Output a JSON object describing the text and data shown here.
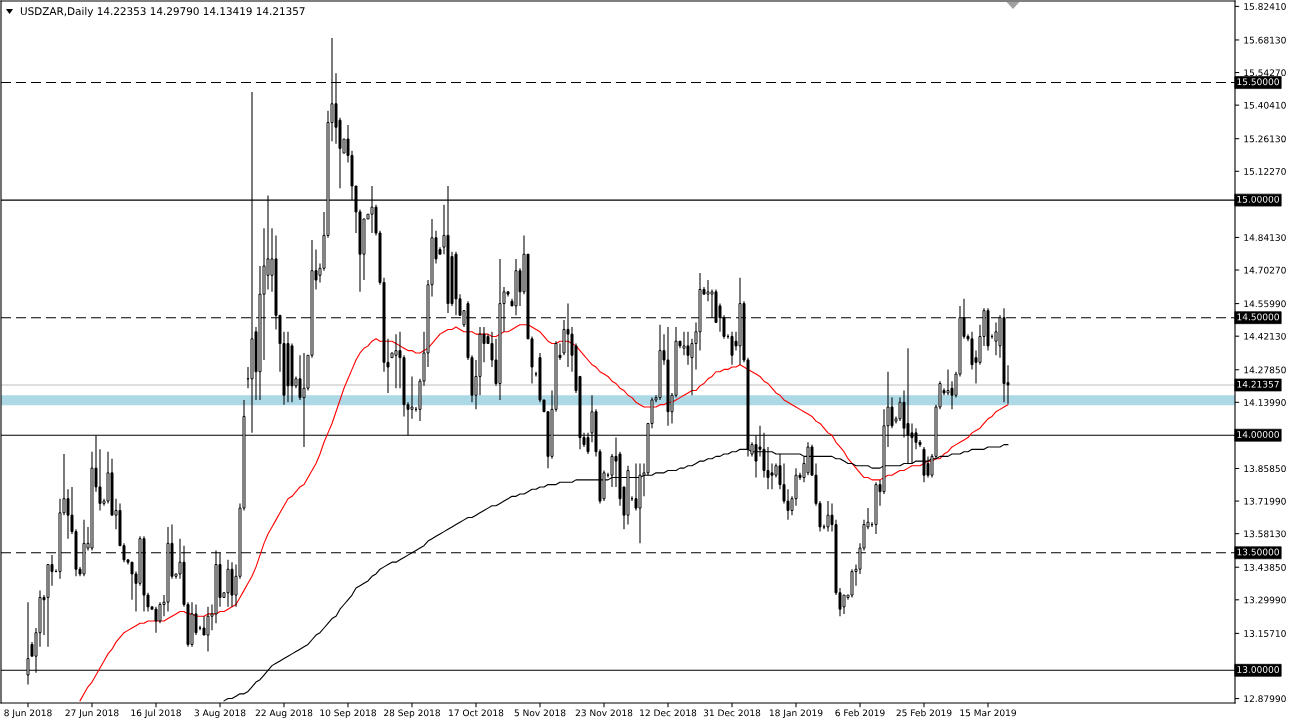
{
  "chart_data": {
    "type": "candlestick",
    "title": "USDZAR,Daily 14.22353 14.29790 14.13419 14.21357",
    "color": "#000000",
    "categories": [
      "8 Jun 2018",
      null,
      null,
      null,
      null,
      null,
      null,
      null,
      null,
      null,
      null,
      null,
      null,
      null,
      null,
      null,
      "27 Jun 2018",
      null,
      null,
      null,
      null,
      null,
      null,
      null,
      null,
      null,
      null,
      null,
      null,
      null,
      null,
      null,
      "16 Jul 2018",
      null,
      null,
      null,
      null,
      null,
      null,
      null,
      null,
      null,
      null,
      null,
      null,
      null,
      null,
      null,
      "3 Aug 2018",
      null,
      null,
      null,
      null,
      null,
      null,
      null,
      null,
      null,
      null,
      null,
      null,
      null,
      null,
      null,
      "22 Aug 2018",
      null,
      null,
      null,
      null,
      null,
      null,
      null,
      null,
      null,
      null,
      null,
      null,
      null,
      null,
      null,
      "10 Sep 2018",
      null,
      null,
      null,
      null,
      null,
      null,
      null,
      null,
      null,
      null,
      null,
      null,
      null,
      null,
      null,
      "28 Sep 2018",
      null,
      null,
      null,
      null,
      null,
      null,
      null,
      null,
      null,
      null,
      null,
      null,
      null,
      null,
      null,
      "17 Oct 2018",
      null,
      null,
      null,
      null,
      null,
      null,
      null,
      null,
      null,
      null,
      null,
      null,
      null,
      null,
      null,
      "5 Nov 2018",
      null,
      null,
      null,
      null,
      null,
      null,
      null,
      null,
      null,
      null,
      null,
      null,
      null,
      null,
      null,
      "23 Nov 2018",
      null,
      null,
      null,
      null,
      null,
      null,
      null,
      null,
      null,
      null,
      null,
      null,
      null,
      null,
      null,
      "12 Dec 2018",
      null,
      null,
      null,
      null,
      null,
      null,
      null,
      null,
      null,
      null,
      null,
      null,
      null,
      null,
      null,
      "31 Dec 2018",
      null,
      null,
      null,
      null,
      null,
      null,
      null,
      null,
      null,
      null,
      null,
      null,
      null,
      null,
      null,
      "18 Jan 2019",
      null,
      null,
      null,
      null,
      null,
      null,
      null,
      null,
      null,
      null,
      null,
      null,
      null,
      null,
      null,
      "6 Feb 2019",
      null,
      null,
      null,
      null,
      null,
      null,
      null,
      null,
      null,
      null,
      null,
      null,
      null,
      null,
      null,
      "25 Feb 2019",
      null,
      null,
      null,
      null,
      null,
      null,
      null,
      null,
      null,
      null,
      null,
      null,
      null,
      null,
      null,
      "15 Mar 2019",
      null,
      null,
      null,
      null,
      null
    ],
    "ohlc": [
      [
        12.98,
        13.29,
        12.94,
        13.05
      ],
      [
        13.11,
        13.12,
        13.06,
        13.06
      ],
      [
        13.06,
        13.18,
        12.99,
        13.16
      ],
      [
        13.16,
        13.34,
        13.1,
        13.31
      ],
      [
        13.31,
        13.32,
        13.15,
        13.3
      ],
      [
        13.31,
        13.45,
        13.1,
        13.45
      ],
      [
        13.45,
        13.49,
        13.36,
        13.42
      ],
      [
        13.42,
        13.43,
        13.42,
        13.42
      ],
      [
        13.42,
        13.73,
        13.39,
        13.67
      ],
      [
        13.67,
        13.92,
        13.66,
        13.73
      ],
      [
        13.73,
        13.77,
        13.56,
        13.66
      ],
      [
        13.66,
        13.78,
        13.58,
        13.59
      ],
      [
        13.59,
        13.6,
        13.4,
        13.43
      ],
      [
        13.43,
        13.44,
        13.4,
        13.41
      ],
      [
        13.41,
        13.64,
        13.4,
        13.54
      ],
      [
        13.52,
        13.61,
        13.51,
        13.54
      ],
      [
        13.52,
        13.93,
        13.51,
        13.86
      ],
      [
        13.86,
        14.0,
        13.76,
        13.78
      ],
      [
        13.78,
        13.94,
        13.68,
        13.71
      ],
      [
        13.71,
        13.73,
        13.7,
        13.72
      ],
      [
        13.72,
        13.93,
        13.71,
        13.84
      ],
      [
        13.84,
        13.9,
        13.66,
        13.66
      ],
      [
        13.66,
        13.73,
        13.6,
        13.68
      ],
      [
        13.68,
        13.71,
        13.53,
        13.53
      ],
      [
        13.53,
        13.54,
        13.46,
        13.47
      ],
      [
        13.47,
        13.47,
        13.45,
        13.46
      ],
      [
        13.46,
        13.46,
        13.3,
        13.41
      ],
      [
        13.41,
        13.42,
        13.25,
        13.37
      ],
      [
        13.37,
        13.57,
        13.36,
        13.56
      ],
      [
        13.56,
        13.57,
        13.25,
        13.32
      ],
      [
        13.32,
        13.33,
        13.25,
        13.27
      ],
      [
        13.27,
        13.27,
        13.26,
        13.26
      ],
      [
        13.26,
        13.27,
        13.16,
        13.21
      ],
      [
        13.21,
        13.29,
        13.2,
        13.28
      ],
      [
        13.28,
        13.32,
        13.23,
        13.29
      ],
      [
        13.29,
        13.61,
        13.25,
        13.54
      ],
      [
        13.54,
        13.62,
        13.39,
        13.4
      ],
      [
        13.4,
        13.41,
        13.39,
        13.41
      ],
      [
        13.41,
        13.56,
        13.39,
        13.46
      ],
      [
        13.46,
        13.53,
        13.27,
        13.28
      ],
      [
        13.28,
        13.29,
        13.1,
        13.11
      ],
      [
        13.11,
        13.29,
        13.1,
        13.24
      ],
      [
        13.24,
        13.28,
        13.15,
        13.16
      ],
      [
        13.18,
        13.19,
        13.17,
        13.18
      ],
      [
        13.18,
        13.23,
        13.15,
        13.15
      ],
      [
        13.15,
        13.27,
        13.08,
        13.23
      ],
      [
        13.23,
        13.28,
        13.17,
        13.24
      ],
      [
        13.24,
        13.51,
        13.2,
        13.45
      ],
      [
        13.45,
        13.5,
        13.27,
        13.31
      ],
      [
        13.31,
        13.33,
        13.31,
        13.33
      ],
      [
        13.33,
        13.47,
        13.27,
        13.43
      ],
      [
        13.43,
        13.46,
        13.27,
        13.32
      ],
      [
        13.32,
        13.45,
        13.27,
        13.4
      ],
      [
        13.4,
        13.71,
        13.39,
        13.69
      ],
      [
        13.69,
        14.15,
        13.68,
        14.08
      ],
      [
        14.24,
        14.29,
        14.2,
        14.24
      ],
      [
        14.24,
        15.46,
        14.01,
        14.41
      ],
      [
        14.44,
        14.46,
        14.15,
        14.27
      ],
      [
        14.27,
        14.72,
        14.15,
        14.6
      ],
      [
        14.6,
        14.88,
        14.32,
        14.72
      ],
      [
        14.68,
        15.02,
        14.62,
        14.75
      ],
      [
        14.68,
        14.88,
        14.61,
        14.75
      ],
      [
        14.75,
        14.85,
        14.45,
        14.51
      ],
      [
        14.51,
        14.51,
        14.27,
        14.39
      ],
      [
        14.39,
        14.44,
        14.13,
        14.17
      ],
      [
        14.39,
        14.44,
        14.14,
        14.21
      ],
      [
        14.38,
        14.39,
        14.14,
        14.21
      ],
      [
        14.21,
        14.25,
        14.2,
        14.24
      ],
      [
        14.24,
        14.34,
        14.15,
        14.16
      ],
      [
        14.16,
        14.35,
        13.95,
        14.2
      ],
      [
        14.2,
        14.34,
        14.19,
        14.34
      ],
      [
        14.34,
        14.83,
        14.33,
        14.7
      ],
      [
        14.7,
        14.79,
        14.62,
        14.66
      ],
      [
        14.68,
        14.73,
        14.65,
        14.71
      ],
      [
        14.71,
        14.95,
        14.7,
        14.85
      ],
      [
        14.85,
        15.38,
        14.84,
        15.33
      ],
      [
        15.33,
        15.69,
        15.25,
        15.41
      ],
      [
        15.41,
        15.54,
        15.24,
        15.31
      ],
      [
        15.34,
        15.35,
        15.05,
        15.22
      ],
      [
        15.2,
        15.26,
        15.2,
        15.26
      ],
      [
        15.26,
        15.32,
        15.16,
        15.19
      ],
      [
        15.19,
        15.21,
        15.0,
        15.06
      ],
      [
        15.06,
        15.06,
        14.86,
        14.95
      ],
      [
        14.95,
        14.96,
        14.61,
        14.77
      ],
      [
        14.77,
        14.92,
        14.66,
        14.92
      ],
      [
        14.92,
        14.94,
        14.92,
        14.94
      ],
      [
        14.94,
        15.06,
        14.86,
        14.97
      ],
      [
        14.97,
        14.98,
        14.85,
        14.86
      ],
      [
        14.86,
        14.87,
        14.64,
        14.65
      ],
      [
        14.65,
        14.67,
        14.27,
        14.31
      ],
      [
        14.31,
        14.41,
        14.18,
        14.29
      ],
      [
        14.33,
        14.35,
        14.33,
        14.35
      ],
      [
        14.34,
        14.43,
        14.2,
        14.36
      ],
      [
        14.36,
        14.44,
        14.2,
        14.33
      ],
      [
        14.33,
        14.34,
        14.08,
        14.13
      ],
      [
        14.13,
        14.14,
        14.0,
        14.11
      ],
      [
        14.11,
        14.25,
        14.07,
        14.12
      ],
      [
        14.11,
        14.12,
        14.1,
        14.11
      ],
      [
        14.11,
        14.24,
        14.06,
        14.23
      ],
      [
        14.23,
        14.44,
        14.21,
        14.35
      ],
      [
        14.35,
        14.66,
        14.29,
        14.64
      ],
      [
        14.64,
        14.92,
        14.59,
        14.84
      ],
      [
        14.84,
        14.87,
        14.73,
        14.75
      ],
      [
        14.79,
        14.8,
        14.77,
        14.77
      ],
      [
        14.8,
        14.98,
        14.77,
        14.85
      ],
      [
        14.85,
        15.06,
        14.52,
        14.56
      ],
      [
        14.76,
        14.78,
        14.55,
        14.56
      ],
      [
        14.77,
        14.78,
        14.51,
        14.58
      ],
      [
        14.58,
        14.6,
        14.51,
        14.51
      ],
      [
        14.47,
        14.53,
        14.46,
        14.53
      ],
      [
        14.56,
        14.57,
        14.32,
        14.33
      ],
      [
        14.33,
        14.34,
        14.14,
        14.17
      ],
      [
        14.17,
        14.32,
        14.11,
        14.25
      ],
      [
        14.25,
        14.46,
        14.17,
        14.43
      ],
      [
        14.43,
        14.46,
        14.31,
        14.39
      ],
      [
        14.42,
        14.43,
        14.39,
        14.39
      ],
      [
        14.39,
        14.44,
        14.29,
        14.32
      ],
      [
        14.32,
        14.41,
        14.21,
        14.22
      ],
      [
        14.22,
        14.75,
        14.15,
        14.56
      ],
      [
        14.56,
        14.63,
        14.44,
        14.61
      ],
      [
        14.61,
        14.61,
        14.59,
        14.6
      ],
      [
        14.57,
        14.58,
        14.55,
        14.55
      ],
      [
        14.55,
        14.75,
        14.51,
        14.7
      ],
      [
        14.7,
        14.71,
        14.55,
        14.61
      ],
      [
        14.61,
        14.85,
        14.6,
        14.77
      ],
      [
        14.77,
        14.77,
        14.41,
        14.41
      ],
      [
        14.41,
        14.42,
        14.22,
        14.29
      ],
      [
        14.26,
        14.27,
        14.25,
        14.26
      ],
      [
        14.33,
        14.35,
        14.14,
        14.15
      ],
      [
        14.15,
        14.15,
        14.1,
        14.1
      ],
      [
        14.1,
        14.1,
        13.86,
        13.91
      ],
      [
        13.91,
        14.19,
        13.9,
        14.11
      ],
      [
        14.11,
        14.4,
        14.1,
        14.39
      ],
      [
        14.34,
        14.39,
        14.32,
        14.33
      ],
      [
        14.35,
        14.49,
        14.34,
        14.45
      ],
      [
        14.45,
        14.56,
        14.29,
        14.43
      ],
      [
        14.43,
        14.46,
        14.27,
        14.34
      ],
      [
        14.38,
        14.39,
        14.18,
        14.19
      ],
      [
        14.25,
        14.25,
        13.94,
        13.99
      ],
      [
        13.99,
        14.01,
        13.95,
        13.96
      ],
      [
        13.99,
        14.01,
        13.92,
        13.93
      ],
      [
        14.01,
        14.17,
        13.97,
        14.1
      ],
      [
        14.1,
        14.11,
        13.91,
        13.93
      ],
      [
        13.93,
        13.94,
        13.71,
        13.72
      ],
      [
        13.73,
        13.85,
        13.72,
        13.84
      ],
      [
        13.83,
        13.84,
        13.82,
        13.83
      ],
      [
        13.83,
        13.92,
        13.78,
        13.91
      ],
      [
        13.91,
        13.99,
        13.78,
        13.89
      ],
      [
        13.92,
        13.93,
        13.7,
        13.73
      ],
      [
        13.78,
        13.78,
        13.6,
        13.66
      ],
      [
        13.66,
        13.87,
        13.62,
        13.85
      ],
      [
        13.73,
        13.74,
        13.72,
        13.73
      ],
      [
        13.73,
        13.88,
        13.68,
        13.69
      ],
      [
        13.69,
        13.88,
        13.54,
        13.83
      ],
      [
        13.83,
        13.88,
        13.74,
        13.84
      ],
      [
        13.84,
        14.05,
        13.83,
        14.05
      ],
      [
        14.05,
        14.16,
        14.03,
        14.15
      ],
      [
        14.15,
        14.17,
        14.14,
        14.16
      ],
      [
        14.16,
        14.47,
        14.15,
        14.36
      ],
      [
        14.36,
        14.43,
        14.3,
        14.32
      ],
      [
        14.32,
        14.46,
        14.04,
        14.1
      ],
      [
        14.1,
        14.18,
        14.05,
        14.17
      ],
      [
        14.17,
        14.46,
        14.16,
        14.4
      ],
      [
        14.4,
        14.4,
        14.37,
        14.38
      ],
      [
        14.37,
        14.44,
        14.34,
        14.38
      ],
      [
        14.38,
        14.44,
        14.3,
        14.34
      ],
      [
        14.33,
        14.41,
        14.17,
        14.39
      ],
      [
        14.39,
        14.48,
        14.28,
        14.44
      ],
      [
        14.44,
        14.69,
        14.36,
        14.62
      ],
      [
        14.62,
        14.63,
        14.6,
        14.6
      ],
      [
        14.6,
        14.66,
        14.57,
        14.61
      ],
      [
        14.6,
        14.62,
        14.5,
        14.61
      ],
      [
        14.61,
        14.62,
        14.48,
        14.48
      ],
      [
        14.55,
        14.56,
        14.44,
        14.5
      ],
      [
        14.5,
        14.51,
        14.41,
        14.42
      ],
      [
        14.42,
        14.43,
        14.41,
        14.42
      ],
      [
        14.42,
        14.44,
        14.3,
        14.34
      ],
      [
        14.4,
        14.44,
        14.36,
        14.38
      ],
      [
        14.38,
        14.67,
        14.3,
        14.56
      ],
      [
        14.56,
        14.57,
        14.31,
        14.32
      ],
      [
        14.32,
        14.33,
        13.91,
        13.94
      ],
      [
        13.92,
        13.97,
        13.91,
        13.96
      ],
      [
        13.96,
        14.0,
        13.82,
        13.89
      ],
      [
        13.95,
        14.04,
        13.91,
        13.94
      ],
      [
        13.94,
        14.01,
        13.82,
        13.85
      ],
      [
        13.85,
        13.95,
        13.77,
        13.82
      ],
      [
        13.84,
        13.88,
        13.77,
        13.83
      ],
      [
        13.83,
        13.88,
        13.82,
        13.87
      ],
      [
        13.87,
        13.92,
        13.77,
        13.79
      ],
      [
        13.79,
        13.88,
        13.71,
        13.72
      ],
      [
        13.72,
        13.77,
        13.64,
        13.68
      ],
      [
        13.68,
        13.74,
        13.66,
        13.73
      ],
      [
        13.73,
        13.86,
        13.7,
        13.83
      ],
      [
        13.83,
        13.84,
        13.81,
        13.82
      ],
      [
        13.82,
        13.91,
        13.8,
        13.88
      ],
      [
        13.84,
        13.97,
        13.83,
        13.95
      ],
      [
        13.95,
        13.96,
        13.83,
        13.83
      ],
      [
        13.83,
        13.88,
        13.7,
        13.71
      ],
      [
        13.71,
        13.72,
        13.59,
        13.61
      ],
      [
        13.61,
        13.62,
        13.6,
        13.61
      ],
      [
        13.61,
        13.72,
        13.59,
        13.66
      ],
      [
        13.66,
        13.71,
        13.59,
        13.62
      ],
      [
        13.62,
        13.64,
        13.32,
        13.33
      ],
      [
        13.33,
        13.35,
        13.23,
        13.26
      ],
      [
        13.27,
        13.32,
        13.24,
        13.32
      ],
      [
        13.31,
        13.32,
        13.3,
        13.32
      ],
      [
        13.32,
        13.43,
        13.31,
        13.42
      ],
      [
        13.42,
        13.45,
        13.36,
        13.43
      ],
      [
        13.43,
        13.54,
        13.41,
        13.52
      ],
      [
        13.52,
        13.64,
        13.51,
        13.62
      ],
      [
        13.61,
        13.69,
        13.6,
        13.63
      ],
      [
        13.62,
        13.63,
        13.61,
        13.62
      ],
      [
        13.62,
        13.8,
        13.58,
        13.79
      ],
      [
        13.79,
        13.81,
        13.7,
        13.76
      ],
      [
        13.76,
        14.11,
        13.75,
        14.04
      ],
      [
        14.04,
        14.27,
        13.95,
        14.12
      ],
      [
        14.12,
        14.16,
        14.03,
        14.04
      ],
      [
        14.06,
        14.08,
        14.05,
        14.07
      ],
      [
        14.07,
        14.16,
        14.06,
        14.14
      ],
      [
        14.14,
        14.19,
        13.99,
        14.03
      ],
      [
        14.05,
        14.37,
        13.88,
        14.0
      ],
      [
        14.01,
        14.05,
        13.88,
        13.99
      ],
      [
        14.01,
        14.03,
        13.94,
        13.97
      ],
      [
        13.97,
        13.98,
        13.95,
        13.96
      ],
      [
        13.94,
        13.95,
        13.8,
        13.83
      ],
      [
        13.88,
        13.91,
        13.82,
        13.83
      ],
      [
        13.83,
        13.92,
        13.82,
        13.91
      ],
      [
        13.91,
        14.13,
        13.9,
        14.12
      ],
      [
        14.12,
        14.23,
        14.11,
        14.22
      ],
      [
        14.19,
        14.2,
        14.17,
        14.18
      ],
      [
        14.18,
        14.28,
        14.17,
        14.19
      ],
      [
        14.2,
        14.23,
        14.11,
        14.17
      ],
      [
        14.17,
        14.27,
        14.16,
        14.26
      ],
      [
        14.26,
        14.55,
        14.25,
        14.5
      ],
      [
        14.5,
        14.58,
        14.41,
        14.42
      ],
      [
        14.42,
        14.43,
        14.4,
        14.41
      ],
      [
        14.41,
        14.44,
        14.28,
        14.3
      ],
      [
        14.33,
        14.36,
        14.22,
        14.31
      ],
      [
        14.31,
        14.47,
        14.3,
        14.42
      ],
      [
        14.42,
        14.54,
        14.38,
        14.53
      ],
      [
        14.53,
        14.54,
        14.36,
        14.38
      ],
      [
        14.42,
        14.43,
        14.41,
        14.42
      ],
      [
        14.4,
        14.48,
        14.34,
        14.44
      ],
      [
        14.38,
        14.51,
        14.33,
        14.5
      ],
      [
        14.5,
        14.54,
        14.14,
        14.22
      ],
      [
        14.22353,
        14.2979,
        14.13419,
        14.21357
      ]
    ],
    "series": [
      {
        "type": "line",
        "color": "#ff0000",
        "values": [
          null,
          null,
          null,
          null,
          null,
          null,
          null,
          null,
          null,
          null,
          null,
          null,
          null,
          12.87,
          12.9,
          12.93,
          12.95,
          12.98,
          13.01,
          13.04,
          13.07,
          13.09,
          13.12,
          13.14,
          13.16,
          13.17,
          13.18,
          13.19,
          13.2,
          13.2,
          13.21,
          13.21,
          13.21,
          13.21,
          13.21,
          13.22,
          13.23,
          13.24,
          13.25,
          13.25,
          13.24,
          13.24,
          13.23,
          13.23,
          13.23,
          13.24,
          13.24,
          13.24,
          13.25,
          13.25,
          13.26,
          13.27,
          13.28,
          13.31,
          13.34,
          13.37,
          13.4,
          13.44,
          13.49,
          13.54,
          13.58,
          13.61,
          13.64,
          13.67,
          13.7,
          13.73,
          13.74,
          13.76,
          13.78,
          13.79,
          13.82,
          13.85,
          13.88,
          13.92,
          13.97,
          14.01,
          14.05,
          14.1,
          14.15,
          14.2,
          14.24,
          14.28,
          14.32,
          14.35,
          14.37,
          14.38,
          14.4,
          14.41,
          14.4,
          14.4,
          14.4,
          14.4,
          14.39,
          14.38,
          14.37,
          14.36,
          14.36,
          14.35,
          14.35,
          14.36,
          14.37,
          14.39,
          14.41,
          14.43,
          14.44,
          14.45,
          14.45,
          14.46,
          14.45,
          14.44,
          14.44,
          14.44,
          14.43,
          14.43,
          14.43,
          14.43,
          14.42,
          14.42,
          14.43,
          14.44,
          14.44,
          14.45,
          14.46,
          14.47,
          14.47,
          14.47,
          14.46,
          14.45,
          14.44,
          14.42,
          14.4,
          14.39,
          14.39,
          14.4,
          14.4,
          14.4,
          14.39,
          14.38,
          14.36,
          14.34,
          14.32,
          14.3,
          14.29,
          14.27,
          14.26,
          14.25,
          14.23,
          14.22,
          14.2,
          14.19,
          14.17,
          14.16,
          14.14,
          14.13,
          14.12,
          14.12,
          14.12,
          14.12,
          14.13,
          14.13,
          14.14,
          14.14,
          14.15,
          14.16,
          14.17,
          14.18,
          14.19,
          14.19,
          14.21,
          14.22,
          14.24,
          14.25,
          14.27,
          14.27,
          14.28,
          14.28,
          14.29,
          14.29,
          14.3,
          14.29,
          14.28,
          14.27,
          14.26,
          14.25,
          14.23,
          14.22,
          14.2,
          14.18,
          14.17,
          14.15,
          14.14,
          14.13,
          14.12,
          14.11,
          14.1,
          14.09,
          14.08,
          14.06,
          14.05,
          14.03,
          14.01,
          14.0,
          13.97,
          13.95,
          13.93,
          13.9,
          13.88,
          13.86,
          13.84,
          13.82,
          13.82,
          13.81,
          13.81,
          13.81,
          13.82,
          13.83,
          13.83,
          13.84,
          13.85,
          13.85,
          13.86,
          13.87,
          13.87,
          13.87,
          13.88,
          13.89,
          13.89,
          13.9,
          13.9,
          13.92,
          13.93,
          13.95,
          13.96,
          13.97,
          13.98,
          13.99,
          14.01,
          14.02,
          14.03,
          14.05,
          14.07,
          14.08,
          14.1,
          14.11,
          14.12,
          14.13
        ]
      },
      {
        "type": "line",
        "color": "#000000",
        "values": [
          null,
          null,
          null,
          null,
          null,
          null,
          null,
          null,
          null,
          null,
          null,
          null,
          null,
          null,
          null,
          null,
          null,
          null,
          null,
          null,
          null,
          null,
          null,
          null,
          null,
          null,
          null,
          null,
          null,
          null,
          null,
          null,
          null,
          null,
          null,
          null,
          null,
          null,
          null,
          null,
          null,
          null,
          null,
          null,
          null,
          null,
          null,
          null,
          null,
          12.87,
          12.88,
          12.88,
          12.89,
          12.9,
          12.9,
          12.91,
          12.93,
          12.95,
          12.96,
          12.98,
          13.0,
          13.02,
          13.03,
          13.04,
          13.05,
          13.06,
          13.07,
          13.08,
          13.09,
          13.1,
          13.11,
          13.13,
          13.15,
          13.16,
          13.18,
          13.2,
          13.22,
          13.23,
          13.26,
          13.28,
          13.3,
          13.32,
          13.35,
          13.36,
          13.37,
          13.38,
          13.4,
          13.41,
          13.43,
          13.44,
          13.45,
          13.46,
          13.46,
          13.47,
          13.48,
          13.49,
          13.5,
          13.51,
          13.52,
          13.53,
          13.55,
          13.56,
          13.57,
          13.58,
          13.59,
          13.6,
          13.61,
          13.62,
          13.63,
          13.64,
          13.65,
          13.65,
          13.66,
          13.67,
          13.68,
          13.69,
          13.7,
          13.7,
          13.71,
          13.72,
          13.73,
          13.74,
          13.74,
          13.75,
          13.75,
          13.76,
          13.77,
          13.77,
          13.78,
          13.78,
          13.79,
          13.79,
          13.79,
          13.8,
          13.8,
          13.8,
          13.8,
          13.81,
          13.81,
          13.81,
          13.81,
          13.81,
          13.81,
          13.81,
          13.81,
          13.81,
          13.82,
          13.82,
          13.82,
          13.82,
          13.82,
          13.82,
          13.82,
          13.82,
          13.83,
          13.83,
          13.83,
          13.84,
          13.84,
          13.84,
          13.85,
          13.85,
          13.85,
          13.86,
          13.86,
          13.87,
          13.87,
          13.88,
          13.89,
          13.89,
          13.9,
          13.9,
          13.91,
          13.91,
          13.92,
          13.92,
          13.93,
          13.93,
          13.94,
          13.94,
          13.94,
          13.93,
          13.93,
          13.93,
          13.93,
          13.93,
          13.93,
          13.92,
          13.92,
          13.92,
          13.92,
          13.92,
          13.92,
          13.92,
          13.91,
          13.91,
          13.91,
          13.91,
          13.91,
          13.91,
          13.91,
          13.91,
          13.9,
          13.9,
          13.89,
          13.88,
          13.88,
          13.87,
          13.87,
          13.87,
          13.87,
          13.86,
          13.86,
          13.86,
          13.87,
          13.87,
          13.87,
          13.87,
          13.87,
          13.88,
          13.88,
          13.88,
          13.89,
          13.89,
          13.89,
          13.89,
          13.9,
          13.9,
          13.91,
          13.91,
          13.91,
          13.92,
          13.92,
          13.92,
          13.93,
          13.93,
          13.94,
          13.94,
          13.94,
          13.94,
          13.95,
          13.95,
          13.95,
          13.95,
          13.96,
          13.96
        ]
      }
    ],
    "ylim": [
      12.861,
      15.847
    ],
    "yticks": [
      {
        "value": 15.8241,
        "label": "15.82410"
      },
      {
        "value": 15.6813,
        "label": "15.68130"
      },
      {
        "value": 15.5427,
        "label": "15.54270"
      },
      {
        "value": 15.4041,
        "label": "15.40410"
      },
      {
        "value": 15.2613,
        "label": "15.26130"
      },
      {
        "value": 15.1227,
        "label": "15.12270"
      },
      {
        "value": 14.8413,
        "label": "14.84130"
      },
      {
        "value": 14.7027,
        "label": "14.70270"
      },
      {
        "value": 14.5599,
        "label": "14.55990"
      },
      {
        "value": 14.4213,
        "label": "14.42130"
      },
      {
        "value": 14.2785,
        "label": "14.27850"
      },
      {
        "value": 14.1399,
        "label": "14.13990"
      },
      {
        "value": 13.8585,
        "label": "13.85850"
      },
      {
        "value": 13.7199,
        "label": "13.71990"
      },
      {
        "value": 13.5813,
        "label": "13.58130"
      },
      {
        "value": 13.4385,
        "label": "13.43850"
      },
      {
        "value": 13.2999,
        "label": "13.29990"
      },
      {
        "value": 13.1571,
        "label": "13.15710"
      },
      {
        "value": 12.8799,
        "label": "12.87990"
      }
    ],
    "ref_lines": [
      {
        "axis": "y",
        "value": 15.5,
        "label": "15.50000",
        "color": "#000000",
        "line_style": "dashed"
      },
      {
        "axis": "y",
        "value": 15.0,
        "label": "15.00000",
        "color": "#000000",
        "line_style": "solid"
      },
      {
        "axis": "y",
        "value": 14.5,
        "label": "14.50000",
        "color": "#000000",
        "line_style": "dashed"
      },
      {
        "axis": "y",
        "value": 14.0,
        "label": "14.00000",
        "color": "#000000",
        "line_style": "solid"
      },
      {
        "axis": "y",
        "value": 13.5,
        "label": "13.50000",
        "color": "#000000",
        "line_style": "dashed"
      },
      {
        "axis": "y",
        "value": 13.0,
        "label": "13.00000",
        "color": "#000000",
        "line_style": "solid"
      },
      {
        "axis": "y",
        "value": 14.21357,
        "label": "14.21357",
        "color": "#c0c0c0",
        "line_style": "solid"
      }
    ],
    "bands": [
      {
        "axis": "y",
        "from": 14.127,
        "to": 14.17,
        "color": "#add8e6"
      }
    ]
  }
}
